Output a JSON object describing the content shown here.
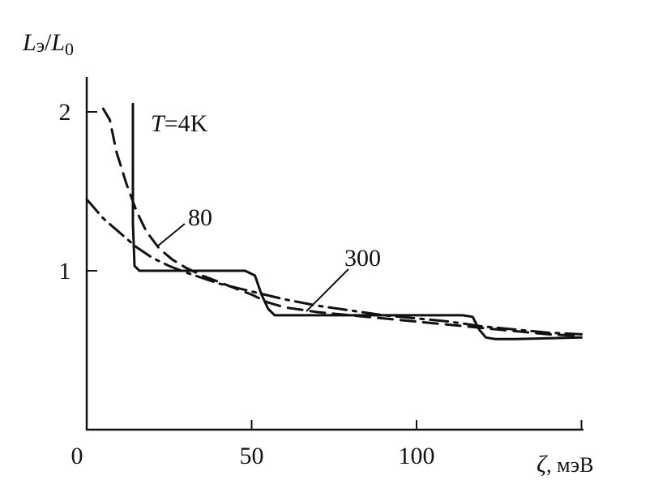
{
  "chart_data": {
    "type": "line",
    "title": "",
    "ylabel": "Lэ/L0",
    "ylabel_parts": {
      "main": "L",
      "sub": "э",
      "slash": "/",
      "main2": "L",
      "sub2": "0"
    },
    "xlabel": "ζ, мэВ",
    "xlabel_parts": {
      "symbol": "ζ",
      "unit": ", мэВ"
    },
    "xlim": [
      0,
      155
    ],
    "ylim": [
      0,
      2.2
    ],
    "x_ticks": [
      0,
      50,
      100,
      150
    ],
    "x_tick_labels": [
      "0",
      "50",
      "100",
      ""
    ],
    "y_ticks": [
      1,
      2
    ],
    "y_tick_labels": [
      "1",
      "2"
    ],
    "grid": false,
    "legend": "none",
    "series": [
      {
        "name": "T=4K",
        "label_prefix": "T",
        "label_suffix": "=4K",
        "style": "solid",
        "x": [
          14,
          14,
          14.5,
          16,
          20,
          30,
          40,
          48,
          51,
          53,
          55,
          57,
          60,
          80,
          100,
          114,
          117,
          119,
          121,
          124,
          130,
          140,
          150
        ],
        "y": [
          2.05,
          1.3,
          1.03,
          1.0,
          1.0,
          1.0,
          1.0,
          1.0,
          0.97,
          0.85,
          0.76,
          0.72,
          0.72,
          0.72,
          0.72,
          0.72,
          0.71,
          0.63,
          0.58,
          0.57,
          0.57,
          0.575,
          0.58
        ]
      },
      {
        "name": "80",
        "label_prefix": "",
        "label_suffix": "80",
        "style": "dashed",
        "x": [
          5,
          7,
          9,
          12,
          15,
          18,
          22,
          26,
          30,
          35,
          40,
          45,
          50,
          55,
          60,
          70,
          80,
          90,
          100,
          110,
          120,
          130,
          140,
          150
        ],
        "y": [
          2.02,
          1.95,
          1.75,
          1.55,
          1.38,
          1.25,
          1.14,
          1.07,
          1.02,
          0.97,
          0.93,
          0.89,
          0.85,
          0.8,
          0.77,
          0.74,
          0.72,
          0.7,
          0.68,
          0.66,
          0.64,
          0.62,
          0.6,
          0.59
        ]
      },
      {
        "name": "300",
        "label_prefix": "",
        "label_suffix": "300",
        "style": "dashdot",
        "x": [
          0,
          5,
          10,
          15,
          20,
          25,
          30,
          40,
          50,
          60,
          70,
          80,
          90,
          100,
          110,
          120,
          130,
          140,
          150
        ],
        "y": [
          1.45,
          1.33,
          1.24,
          1.15,
          1.08,
          1.03,
          0.99,
          0.92,
          0.87,
          0.82,
          0.78,
          0.75,
          0.72,
          0.7,
          0.68,
          0.65,
          0.63,
          0.61,
          0.6
        ]
      }
    ]
  }
}
